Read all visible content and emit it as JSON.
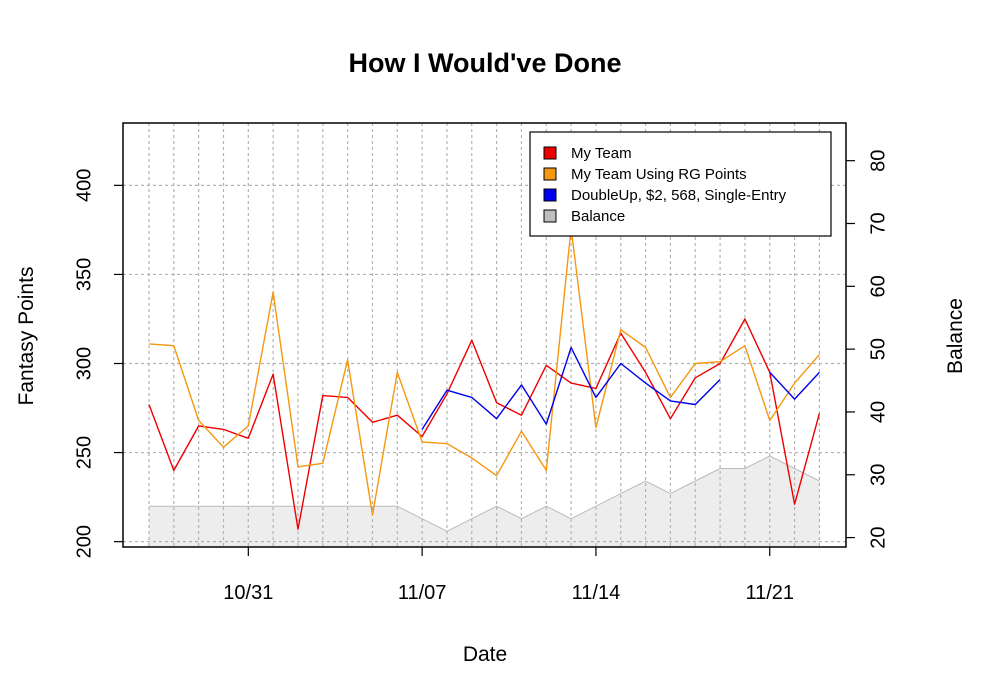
{
  "chart_data": {
    "type": "line",
    "title": "How I Would've Done",
    "xlabel": "Date",
    "ylabel": "Fantasy Points",
    "y2label": "Balance",
    "x": [
      "10/27",
      "10/28",
      "10/29",
      "10/30",
      "10/31",
      "11/01",
      "11/02",
      "11/03",
      "11/04",
      "11/05",
      "11/06",
      "11/07",
      "11/08",
      "11/09",
      "11/10",
      "11/11",
      "11/12",
      "11/13",
      "11/14",
      "11/15",
      "11/16",
      "11/17",
      "11/18",
      "11/19",
      "11/20",
      "11/21",
      "11/22",
      "11/23"
    ],
    "x_ticks": [
      "10/31",
      "11/07",
      "11/14",
      "11/21"
    ],
    "ylim": [
      197,
      435
    ],
    "y_ticks": [
      200,
      250,
      300,
      350,
      400
    ],
    "y2lim": [
      18.5,
      86
    ],
    "y2_ticks": [
      20,
      30,
      40,
      50,
      60,
      70,
      80
    ],
    "grid": true,
    "legend_position": "top-right",
    "series": [
      {
        "name": "My Team",
        "color": "#ee0000",
        "axis": "left",
        "values": [
          277,
          240,
          265,
          263,
          258,
          294,
          207,
          282,
          281,
          267,
          271,
          259,
          283,
          313,
          278,
          271,
          299,
          289,
          286,
          317,
          295,
          269,
          292,
          300,
          325,
          295,
          221,
          272
        ]
      },
      {
        "name": "My Team Using RG Points",
        "color": "#f5970f",
        "axis": "left",
        "values": [
          311,
          310,
          268,
          253,
          265,
          340,
          242,
          244,
          302,
          215,
          295,
          256,
          255,
          247,
          237,
          262,
          240,
          376,
          264,
          319,
          309,
          281,
          300,
          301,
          310,
          268,
          289,
          305
        ]
      },
      {
        "name": "DoubleUp, $2, 568, Single-Entry",
        "color": "#0000ee",
        "axis": "left",
        "values": [
          null,
          null,
          null,
          null,
          null,
          null,
          null,
          null,
          null,
          null,
          null,
          263,
          285,
          281,
          269,
          288,
          266,
          309,
          281,
          300,
          289,
          279,
          277,
          291,
          null,
          295,
          280,
          295
        ]
      },
      {
        "name": "Balance",
        "color": "#bbbbbb",
        "fill": "#ededed",
        "axis": "right",
        "type": "area",
        "values": [
          25,
          25,
          25,
          25,
          25,
          25,
          25,
          25,
          25,
          25,
          25,
          23,
          21,
          23,
          25,
          23,
          25,
          23,
          25,
          27,
          29,
          27,
          29,
          31,
          31,
          33,
          31,
          29
        ]
      }
    ]
  }
}
